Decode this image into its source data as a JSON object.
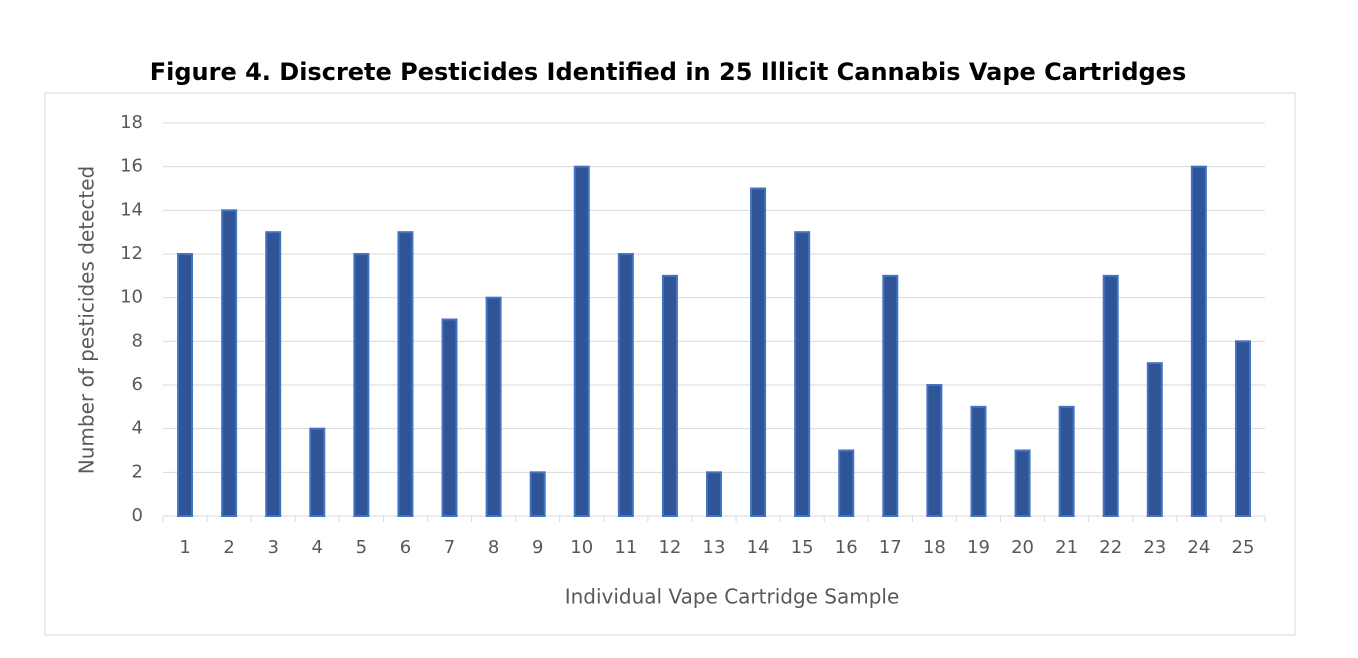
{
  "chart_data": {
    "type": "bar",
    "title": "Figure 4. Discrete Pesticides Identified in 25 Illicit Cannabis Vape Cartridges",
    "x_label": "Individual Vape Cartridge Sample",
    "y_label": "Number of pesticides detected",
    "categories": [
      "1",
      "2",
      "3",
      "4",
      "5",
      "6",
      "7",
      "8",
      "9",
      "10",
      "11",
      "12",
      "13",
      "14",
      "15",
      "16",
      "17",
      "18",
      "19",
      "20",
      "21",
      "22",
      "23",
      "24",
      "25"
    ],
    "values": [
      12,
      14,
      13,
      4,
      12,
      13,
      9,
      10,
      2,
      16,
      12,
      11,
      2,
      15,
      13,
      3,
      11,
      6,
      5,
      3,
      5,
      11,
      7,
      16,
      8
    ],
    "color": "#2f5597",
    "ylim": [
      0,
      18
    ],
    "yticks": [
      0,
      2,
      4,
      6,
      8,
      10,
      12,
      14,
      16,
      18
    ],
    "grid": true
  }
}
